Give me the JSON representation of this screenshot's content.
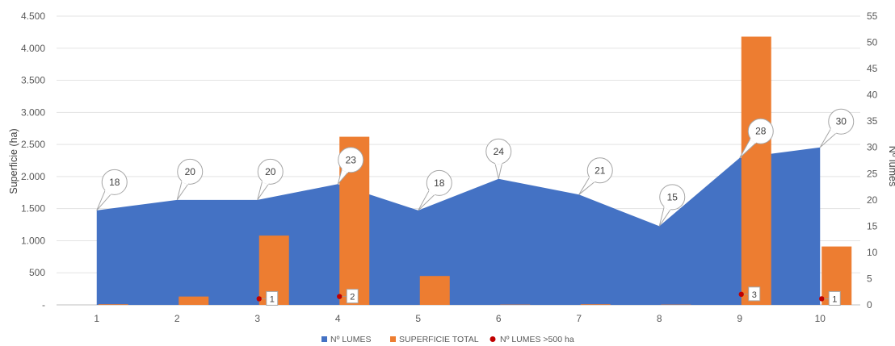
{
  "chart_data": {
    "type": "bar",
    "categories": [
      "1",
      "2",
      "3",
      "4",
      "5",
      "6",
      "7",
      "8",
      "9",
      "10"
    ],
    "series": [
      {
        "name": "Nº LUMES",
        "type": "area",
        "axis": "right",
        "color": "#4472C4",
        "values": [
          18,
          20,
          20,
          23,
          18,
          24,
          21,
          15,
          28,
          30
        ]
      },
      {
        "name": "SUPERFICIE TOTAL",
        "type": "bar",
        "axis": "left",
        "color": "#ED7D31",
        "values": [
          10,
          130,
          1080,
          2620,
          450,
          5,
          10,
          5,
          4180,
          910
        ]
      },
      {
        "name": "Nº LUMES >500 ha",
        "type": "scatter",
        "axis": "left",
        "color": "#C00000",
        "values": [
          null,
          null,
          1,
          2,
          null,
          null,
          null,
          null,
          3,
          1
        ]
      }
    ],
    "title": "",
    "ylabel": "Superficie (ha)",
    "y2label": "Nº lumes",
    "ylim": [
      0,
      4500
    ],
    "y2lim": [
      0,
      55
    ],
    "yticks": [
      "-",
      "500",
      "1.000",
      "1.500",
      "2.000",
      "2.500",
      "3.000",
      "3.500",
      "4.000",
      "4.500"
    ],
    "y2ticks": [
      "0",
      "5",
      "10",
      "15",
      "20",
      "25",
      "30",
      "35",
      "40",
      "45",
      "50",
      "55"
    ],
    "grid": true,
    "legend": "bottom-center"
  }
}
